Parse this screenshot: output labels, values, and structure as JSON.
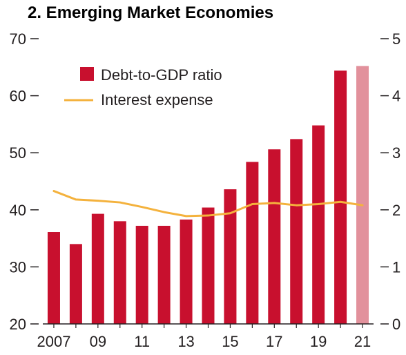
{
  "chart_data": {
    "type": "bar",
    "title": "2. Emerging Market Economies",
    "categories": [
      "2007",
      "2008",
      "2009",
      "2010",
      "2011",
      "2012",
      "2013",
      "2014",
      "2015",
      "2016",
      "2017",
      "2018",
      "2019",
      "2020",
      "2021"
    ],
    "x_tick_labels": [
      "2007",
      "09",
      "11",
      "13",
      "15",
      "17",
      "19",
      "21"
    ],
    "x_tick_label_categories": [
      "2007",
      "2009",
      "2011",
      "2013",
      "2015",
      "2017",
      "2019",
      "2021"
    ],
    "series": [
      {
        "name": "Debt-to-GDP ratio",
        "type": "bar",
        "axis": "left",
        "values": [
          36.1,
          34.0,
          39.3,
          38.0,
          37.2,
          37.2,
          38.3,
          40.4,
          43.6,
          48.4,
          50.6,
          52.4,
          54.8,
          64.4,
          65.2
        ],
        "color": "#c8102e",
        "projected_color": "#e2919c",
        "projected_categories": [
          "2021"
        ]
      },
      {
        "name": "Interest expense",
        "type": "line",
        "axis": "right",
        "values": [
          2.33,
          2.18,
          2.16,
          2.13,
          2.05,
          1.96,
          1.89,
          1.9,
          1.94,
          2.1,
          2.12,
          2.08,
          2.1,
          2.14,
          2.08
        ],
        "color": "#f4b23d"
      }
    ],
    "y_left": {
      "ylim": [
        20,
        70
      ],
      "ticks": [
        20,
        30,
        40,
        50,
        60,
        70
      ]
    },
    "y_right": {
      "ylim": [
        0,
        5
      ],
      "ticks": [
        0,
        1,
        2,
        3,
        4,
        5
      ]
    },
    "legend_position": "top-left",
    "grid": false,
    "xlabel": "",
    "ylabel": ""
  }
}
